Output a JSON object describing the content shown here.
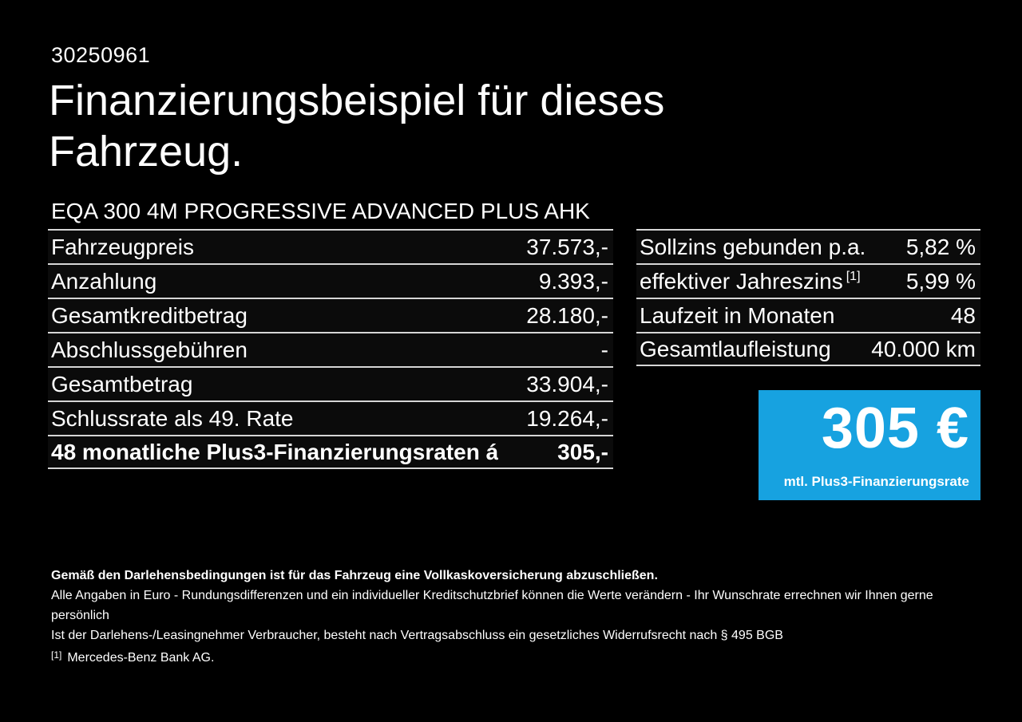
{
  "header": {
    "doc_number": "30250961",
    "title_line1": "Finanzierungsbeispiel für dieses",
    "title_line2": "Fahrzeug.",
    "vehicle_name": "EQA 300 4M PROGRESSIVE ADVANCED PLUS AHK"
  },
  "financing_table": {
    "rows": [
      {
        "label": "Fahrzeugpreis",
        "value": "37.573,-"
      },
      {
        "label": "Anzahlung",
        "value": "9.393,-"
      },
      {
        "label": "Gesamtkreditbetrag",
        "value": "28.180,-"
      },
      {
        "label": "Abschlussgebühren",
        "value": "-"
      },
      {
        "label": "Gesamtbetrag",
        "value": "33.904,-"
      },
      {
        "label": "Schlussrate als 49. Rate",
        "value": "19.264,-"
      },
      {
        "label": "48 monatliche Plus3-Finanzierungsraten á",
        "value": "305,-"
      }
    ]
  },
  "conditions_table": {
    "rows": [
      {
        "label": "Sollzins gebunden p.a.",
        "value": "5,82 %"
      },
      {
        "label": "effektiver Jahreszins",
        "footnote_marker": "[1]",
        "value": "5,99 %"
      },
      {
        "label": "Laufzeit in Monaten",
        "value": "48"
      },
      {
        "label": "Gesamtlaufleistung",
        "value": "40.000 km"
      }
    ]
  },
  "rate_box": {
    "amount": "305 €",
    "caption": "mtl. Plus3-Finanzierungsrate",
    "background_color": "#17a2e0"
  },
  "footer": {
    "insurance_note": "Gemäß den Darlehensbedingungen ist für das Fahrzeug eine Vollkaskoversicherung abzuschließen.",
    "disclaimer_line1": "Alle Angaben in Euro - Rundungsdifferenzen und ein individueller Kreditschutzbrief können die Werte verändern - Ihr Wunschrate errechnen wir Ihnen gerne persönlich",
    "disclaimer_line2": "Ist der Darlehens-/Leasingnehmer Verbraucher, besteht nach Vertragsabschluss ein gesetzliches Widerrufsrecht nach § 495 BGB",
    "footnote_marker": "[1]",
    "footnote_text": "Mercedes-Benz Bank AG."
  },
  "colors": {
    "page_background": "#000000",
    "text": "#ffffff",
    "separator": "#d6d6d6",
    "accent_blue": "#17a2e0"
  }
}
